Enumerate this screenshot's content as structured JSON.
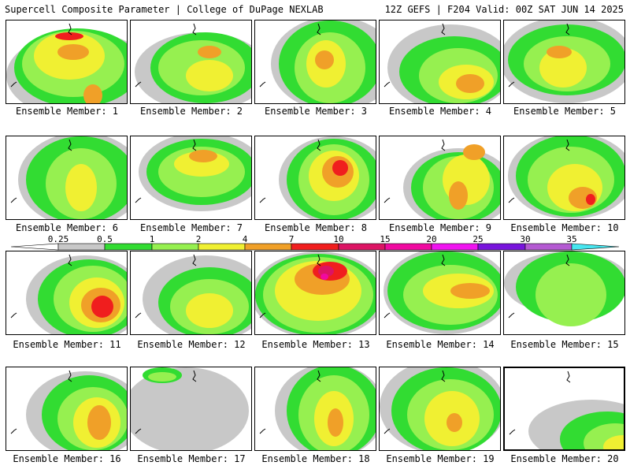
{
  "header": {
    "title_left": "Supercell Composite Parameter | College of DuPage NEXLAB",
    "title_right": "12Z GEFS | F204 Valid: 00Z SAT JUN 14 2025"
  },
  "panels": [
    {
      "label": "Ensemble Member: 1"
    },
    {
      "label": "Ensemble Member: 2"
    },
    {
      "label": "Ensemble Member: 3"
    },
    {
      "label": "Ensemble Member: 4"
    },
    {
      "label": "Ensemble Member: 5"
    },
    {
      "label": "Ensemble Member: 6"
    },
    {
      "label": "Ensemble Member: 7"
    },
    {
      "label": "Ensemble Member: 8"
    },
    {
      "label": "Ensemble Member: 9"
    },
    {
      "label": "Ensemble Member: 10"
    },
    {
      "label": "Ensemble Member: 11"
    },
    {
      "label": "Ensemble Member: 12"
    },
    {
      "label": "Ensemble Member: 13"
    },
    {
      "label": "Ensemble Member: 14"
    },
    {
      "label": "Ensemble Member: 15"
    },
    {
      "label": "Ensemble Member: 16"
    },
    {
      "label": "Ensemble Member: 17"
    },
    {
      "label": "Ensemble Member: 18"
    },
    {
      "label": "Ensemble Member: 19"
    },
    {
      "label": "Ensemble Member: 20"
    }
  ],
  "colorbar": {
    "ticks": [
      "0.25",
      "0.5",
      "1",
      "2",
      "4",
      "7",
      "10",
      "15",
      "20",
      "25",
      "30",
      "35"
    ],
    "colors": [
      "#c8c8c8",
      "#32dc32",
      "#96f050",
      "#f0f032",
      "#f0a028",
      "#f01e1e",
      "#dc1464",
      "#f00aa0",
      "#f014f0",
      "#7814dc",
      "#b45ad2",
      "#46e6f0"
    ]
  }
}
